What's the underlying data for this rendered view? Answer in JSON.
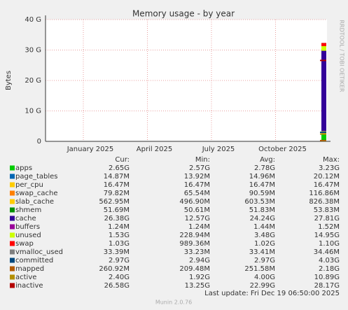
{
  "chart_data": {
    "type": "area",
    "title": "Memory usage - by year",
    "y_label": "Bytes",
    "ylim": [
      0,
      40000000000
    ],
    "yticks": [
      0,
      {
        "value": 10000000000,
        "label": "10 G"
      },
      {
        "value": 20000000000,
        "label": "20 G"
      },
      {
        "value": 30000000000,
        "label": "30 G"
      },
      {
        "value": 40000000000,
        "label": "40 G"
      }
    ],
    "xticks": [
      "January 2025",
      "April 2025",
      "July 2025",
      "October 2025"
    ],
    "grid": true,
    "columns": [
      "Cur:",
      "Min:",
      "Avg:",
      "Max:"
    ],
    "series": [
      {
        "name": "apps",
        "color": "#00cc00",
        "values": [
          2650000000,
          2570000000,
          2780000000,
          3230000000
        ],
        "value_labels": [
          "2.65G",
          "2.57G",
          "2.78G",
          "3.23G"
        ]
      },
      {
        "name": "page_tables",
        "color": "#0066b3",
        "values": [
          14870000,
          13920000,
          14960000,
          20120000
        ],
        "value_labels": [
          "14.87M",
          "13.92M",
          "14.96M",
          "20.12M"
        ]
      },
      {
        "name": "per_cpu",
        "color": "#ffcc00",
        "values": [
          16470000,
          16470000,
          16470000,
          16470000
        ],
        "value_labels": [
          "16.47M",
          "16.47M",
          "16.47M",
          "16.47M"
        ]
      },
      {
        "name": "swap_cache",
        "color": "#ff8000",
        "values": [
          79820000,
          65540000,
          90590000,
          116860000
        ],
        "value_labels": [
          "79.82M",
          "65.54M",
          "90.59M",
          "116.86M"
        ]
      },
      {
        "name": "slab_cache",
        "color": "#ffcc00",
        "values": [
          562950000,
          496900000,
          603530000,
          826380000
        ],
        "value_labels": [
          "562.95M",
          "496.90M",
          "603.53M",
          "826.38M"
        ]
      },
      {
        "name": "shmem",
        "color": "#008f00",
        "values": [
          51690000,
          50610000,
          51830000,
          53830000
        ],
        "value_labels": [
          "51.69M",
          "50.61M",
          "51.83M",
          "53.83M"
        ]
      },
      {
        "name": "cache",
        "color": "#330099",
        "values": [
          26380000000,
          12570000000,
          24240000000,
          27810000000
        ],
        "value_labels": [
          "26.38G",
          "12.57G",
          "24.24G",
          "27.81G"
        ]
      },
      {
        "name": "buffers",
        "color": "#990099",
        "values": [
          1240000,
          1240000,
          1440000,
          1520000
        ],
        "value_labels": [
          "1.24M",
          "1.24M",
          "1.44M",
          "1.52M"
        ]
      },
      {
        "name": "unused",
        "color": "#ccff00",
        "values": [
          1530000000,
          228940000,
          3480000000,
          14950000000
        ],
        "value_labels": [
          "1.53G",
          "228.94M",
          "3.48G",
          "14.95G"
        ]
      },
      {
        "name": "swap",
        "color": "#ff0000",
        "values": [
          1030000000,
          989360000,
          1020000000,
          1100000000
        ],
        "value_labels": [
          "1.03G",
          "989.36M",
          "1.02G",
          "1.10G"
        ]
      },
      {
        "name": "vmalloc_used",
        "color": "#808080",
        "values": [
          33390000,
          33230000,
          33410000,
          34460000
        ],
        "value_labels": [
          "33.39M",
          "33.23M",
          "33.41M",
          "34.46M"
        ]
      },
      {
        "name": "committed",
        "color": "#00487d",
        "line": true,
        "values": [
          2970000000,
          2940000000,
          2970000000,
          4030000000
        ],
        "value_labels": [
          "2.97G",
          "2.94G",
          "2.97G",
          "4.03G"
        ]
      },
      {
        "name": "mapped",
        "color": "#b35a00",
        "line": true,
        "values": [
          260920000,
          209480000,
          251580000,
          2180000000
        ],
        "value_labels": [
          "260.92M",
          "209.48M",
          "251.58M",
          "2.18G"
        ]
      },
      {
        "name": "active",
        "color": "#b38f00",
        "line": true,
        "values": [
          2400000000,
          1920000000,
          4000000000,
          10890000000
        ],
        "value_labels": [
          "2.40G",
          "1.92G",
          "4.00G",
          "10.89G"
        ]
      },
      {
        "name": "inactive",
        "color": "#b30000",
        "line": true,
        "values": [
          26580000000,
          13250000000,
          22990000000,
          28170000000
        ],
        "value_labels": [
          "26.58G",
          "13.25G",
          "22.99G",
          "28.17G"
        ]
      }
    ],
    "last_update": "Last update: Fri Dec 19 06:50:00 2025",
    "footer": "Munin 2.0.76",
    "side_text": "RRDTOOL / TOBI OETIKER"
  }
}
